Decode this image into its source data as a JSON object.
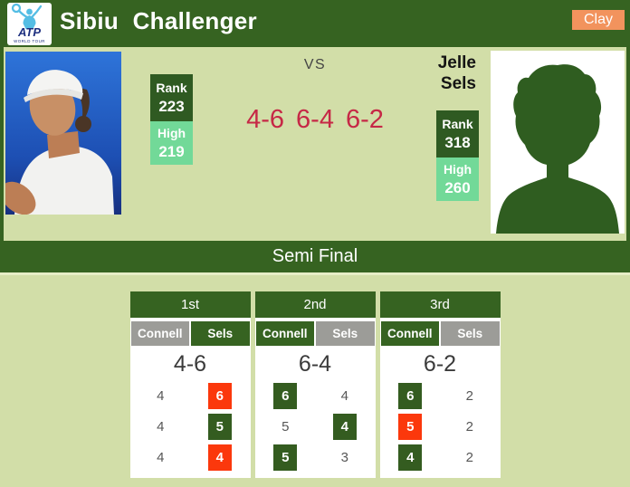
{
  "header": {
    "title": "Sibiu Challenger",
    "surface_label": "Clay",
    "logo": {
      "line1": "ATP",
      "line2": "WORLD TOUR"
    }
  },
  "match": {
    "vs_label": "VS",
    "score_summary": "4-6 6-4 6-2",
    "round_label": "Semi Final",
    "player_left": {
      "rank_label": "Rank",
      "rank": "223",
      "high_label": "High",
      "high": "219"
    },
    "player_right": {
      "name": "Jelle Sels",
      "rank_label": "Rank",
      "rank": "318",
      "high_label": "High",
      "high": "260"
    }
  },
  "sets": [
    {
      "label": "1st",
      "score": "4-6",
      "players": [
        {
          "name": "Connell",
          "winner": false
        },
        {
          "name": "Sels",
          "winner": true
        }
      ],
      "games": [
        {
          "left": {
            "value": "4",
            "style": "plain"
          },
          "right": {
            "value": "6",
            "style": "red"
          }
        },
        {
          "left": {
            "value": "4",
            "style": "plain"
          },
          "right": {
            "value": "5",
            "style": "green"
          }
        },
        {
          "left": {
            "value": "4",
            "style": "plain"
          },
          "right": {
            "value": "4",
            "style": "red"
          }
        }
      ]
    },
    {
      "label": "2nd",
      "score": "6-4",
      "players": [
        {
          "name": "Connell",
          "winner": true
        },
        {
          "name": "Sels",
          "winner": false
        }
      ],
      "games": [
        {
          "left": {
            "value": "6",
            "style": "green"
          },
          "right": {
            "value": "4",
            "style": "plain"
          }
        },
        {
          "left": {
            "value": "5",
            "style": "plain"
          },
          "right": {
            "value": "4",
            "style": "green"
          }
        },
        {
          "left": {
            "value": "5",
            "style": "green"
          },
          "right": {
            "value": "3",
            "style": "plain"
          }
        }
      ]
    },
    {
      "label": "3rd",
      "score": "6-2",
      "players": [
        {
          "name": "Connell",
          "winner": true
        },
        {
          "name": "Sels",
          "winner": false
        }
      ],
      "games": [
        {
          "left": {
            "value": "6",
            "style": "green"
          },
          "right": {
            "value": "2",
            "style": "plain"
          }
        },
        {
          "left": {
            "value": "5",
            "style": "red"
          },
          "right": {
            "value": "2",
            "style": "plain"
          }
        },
        {
          "left": {
            "value": "4",
            "style": "green"
          },
          "right": {
            "value": "2",
            "style": "plain"
          }
        }
      ]
    }
  ],
  "colors": {
    "dark_green": "#366321",
    "rank_green": "#2F5A22",
    "light_green_bg": "#D2DEA8",
    "mint_green": "#72D998",
    "crimson_score": "#C62846",
    "clay_orange": "#F2935D",
    "game_box_red": "#FB380C",
    "game_box_green": "#345C20",
    "loser_gray": "#9C9C98"
  }
}
